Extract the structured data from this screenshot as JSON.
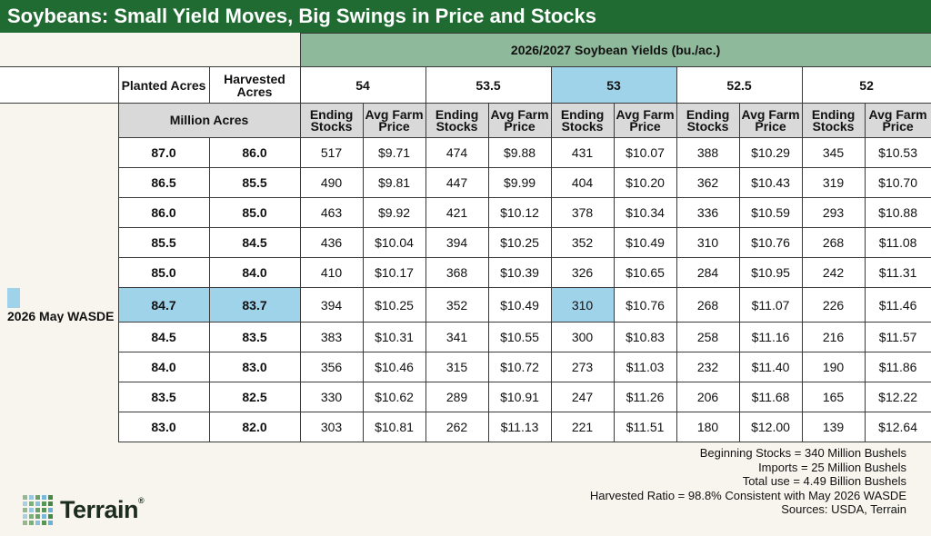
{
  "title": "Soybeans: Small Yield Moves, Big Swings in Price and Stocks",
  "yield_header": "2026/2027 Soybean Yields (bu./ac.)",
  "acre_headers": {
    "planted": "Planted Acres",
    "harvested": "Harvested Acres",
    "unit": "Million Acres"
  },
  "sub_headers": {
    "stocks": "Ending Stocks",
    "price": "Avg Farm Price"
  },
  "legend_label": "2026 May WASDE",
  "colors": {
    "title_bg": "#1f6b32",
    "header_bg": "#8fb99b",
    "highlight": "#9fd3ea",
    "subheader_bg": "#d9d9d9"
  },
  "notes": [
    "Beginning Stocks = 340 Million Bushels",
    "Imports = 25 Million Bushels",
    "Total use = 4.49 Billion Bushels",
    "Harvested Ratio = 98.8% Consistent with May 2026 WASDE",
    "Sources: USDA, Terrain"
  ],
  "logo": {
    "text": "Terrain",
    "reg": "®"
  },
  "chart_data": {
    "type": "table",
    "title": "Soybeans: Small Yield Moves, Big Swings in Price and Stocks",
    "yields": [
      "54",
      "53.5",
      "53",
      "52.5",
      "52"
    ],
    "highlight_yield": "53",
    "highlight_row": 5,
    "rows": [
      {
        "planted": "87.0",
        "harvested": "86.0",
        "cells": [
          [
            "517",
            "$9.71"
          ],
          [
            "474",
            "$9.88"
          ],
          [
            "431",
            "$10.07"
          ],
          [
            "388",
            "$10.29"
          ],
          [
            "345",
            "$10.53"
          ]
        ]
      },
      {
        "planted": "86.5",
        "harvested": "85.5",
        "cells": [
          [
            "490",
            "$9.81"
          ],
          [
            "447",
            "$9.99"
          ],
          [
            "404",
            "$10.20"
          ],
          [
            "362",
            "$10.43"
          ],
          [
            "319",
            "$10.70"
          ]
        ]
      },
      {
        "planted": "86.0",
        "harvested": "85.0",
        "cells": [
          [
            "463",
            "$9.92"
          ],
          [
            "421",
            "$10.12"
          ],
          [
            "378",
            "$10.34"
          ],
          [
            "336",
            "$10.59"
          ],
          [
            "293",
            "$10.88"
          ]
        ]
      },
      {
        "planted": "85.5",
        "harvested": "84.5",
        "cells": [
          [
            "436",
            "$10.04"
          ],
          [
            "394",
            "$10.25"
          ],
          [
            "352",
            "$10.49"
          ],
          [
            "310",
            "$10.76"
          ],
          [
            "268",
            "$11.08"
          ]
        ]
      },
      {
        "planted": "85.0",
        "harvested": "84.0",
        "cells": [
          [
            "410",
            "$10.17"
          ],
          [
            "368",
            "$10.39"
          ],
          [
            "326",
            "$10.65"
          ],
          [
            "284",
            "$10.95"
          ],
          [
            "242",
            "$11.31"
          ]
        ]
      },
      {
        "planted": "84.7",
        "harvested": "83.7",
        "cells": [
          [
            "394",
            "$10.25"
          ],
          [
            "352",
            "$10.49"
          ],
          [
            "310",
            "$10.76"
          ],
          [
            "268",
            "$11.07"
          ],
          [
            "226",
            "$11.46"
          ]
        ]
      },
      {
        "planted": "84.5",
        "harvested": "83.5",
        "cells": [
          [
            "383",
            "$10.31"
          ],
          [
            "341",
            "$10.55"
          ],
          [
            "300",
            "$10.83"
          ],
          [
            "258",
            "$11.16"
          ],
          [
            "216",
            "$11.57"
          ]
        ]
      },
      {
        "planted": "84.0",
        "harvested": "83.0",
        "cells": [
          [
            "356",
            "$10.46"
          ],
          [
            "315",
            "$10.72"
          ],
          [
            "273",
            "$11.03"
          ],
          [
            "232",
            "$11.40"
          ],
          [
            "190",
            "$11.86"
          ]
        ]
      },
      {
        "planted": "83.5",
        "harvested": "82.5",
        "cells": [
          [
            "330",
            "$10.62"
          ],
          [
            "289",
            "$10.91"
          ],
          [
            "247",
            "$11.26"
          ],
          [
            "206",
            "$11.68"
          ],
          [
            "165",
            "$12.22"
          ]
        ]
      },
      {
        "planted": "83.0",
        "harvested": "82.0",
        "cells": [
          [
            "303",
            "$10.81"
          ],
          [
            "262",
            "$11.13"
          ],
          [
            "221",
            "$11.51"
          ],
          [
            "180",
            "$12.00"
          ],
          [
            "139",
            "$12.64"
          ]
        ]
      }
    ]
  }
}
